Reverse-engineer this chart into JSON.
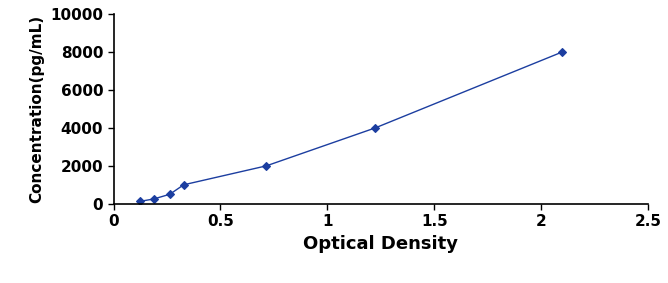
{
  "x": [
    0.123,
    0.187,
    0.263,
    0.328,
    0.715,
    1.224,
    2.098
  ],
  "y": [
    125,
    250,
    500,
    1000,
    2000,
    4000,
    8000
  ],
  "line_color": "#1c3ea0",
  "marker": "D",
  "marker_size": 4,
  "marker_color": "#1c3ea0",
  "line_style": "-",
  "line_width": 1.0,
  "xlabel": "Optical Density",
  "ylabel": "Concentration(pg/mL)",
  "xlim": [
    0,
    2.5
  ],
  "ylim": [
    0,
    10000
  ],
  "xticks": [
    0,
    0.5,
    1.0,
    1.5,
    2.0,
    2.5
  ],
  "xtick_labels": [
    "0",
    "0.5",
    "1",
    "1.5",
    "2",
    "2.5"
  ],
  "yticks": [
    0,
    2000,
    4000,
    6000,
    8000,
    10000
  ],
  "ytick_labels": [
    "0",
    "2000",
    "4000",
    "6000",
    "8000",
    "10000"
  ],
  "xlabel_fontsize": 13,
  "ylabel_fontsize": 11,
  "tick_fontsize": 11,
  "background_color": "#ffffff"
}
